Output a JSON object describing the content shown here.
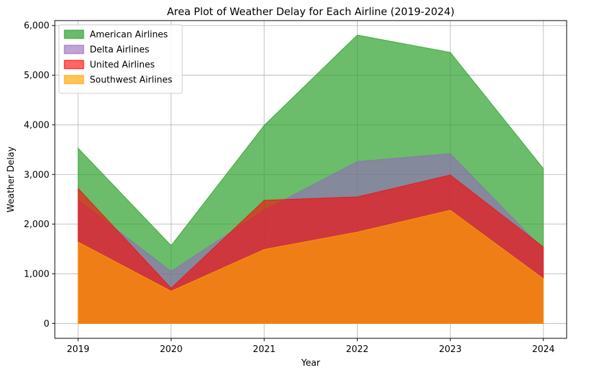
{
  "chart_data": {
    "type": "area",
    "title": "Area Plot of Weather Delay for Each Airline (2019-2024)",
    "xlabel": "Year",
    "ylabel": "Weather Delay",
    "categories": [
      "2019",
      "2020",
      "2021",
      "2022",
      "2023",
      "2024"
    ],
    "y_ticks": [
      "0",
      "1,000",
      "2,000",
      "3,000",
      "4,000",
      "5,000",
      "6,000"
    ],
    "ylim": [
      -300,
      6100
    ],
    "grid": true,
    "legend_position": "top-left",
    "stacked": false,
    "series": [
      {
        "name": "American Airlines",
        "color": "#2ca02c",
        "opacity": 0.7,
        "values": [
          3530,
          1570,
          3990,
          5810,
          5460,
          3120
        ]
      },
      {
        "name": "Delta Airlines",
        "color": "#9467bd",
        "opacity": 0.6,
        "values": [
          2480,
          1050,
          2280,
          3260,
          3420,
          1490
        ]
      },
      {
        "name": "United Airlines",
        "color": "#ff0000",
        "opacity": 0.6,
        "values": [
          2720,
          710,
          2480,
          2550,
          2990,
          1540
        ]
      },
      {
        "name": "Southwest Airlines",
        "color": "#ffa500",
        "opacity": 0.65,
        "values": [
          1640,
          650,
          1490,
          1840,
          2280,
          900
        ]
      }
    ]
  }
}
